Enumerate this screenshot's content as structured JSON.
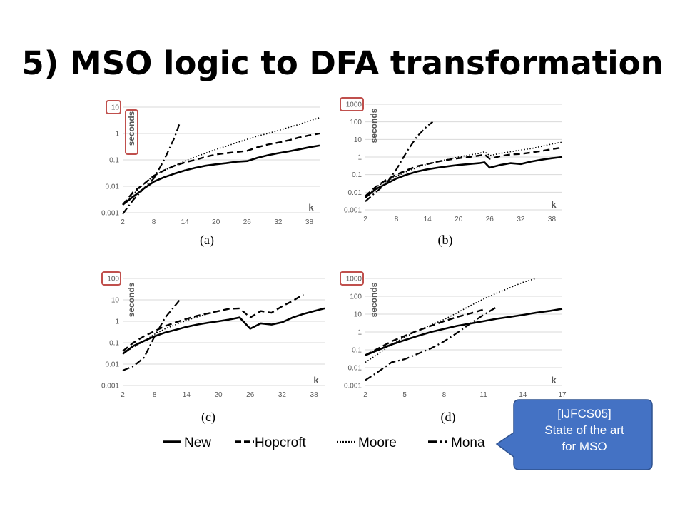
{
  "slide": {
    "title": "5) MSO logic to DFA transformation"
  },
  "callout": {
    "line1": "[IJFCS05]",
    "line2": "State of the art",
    "line3": "for MSO",
    "fill": "#4472c4",
    "border": "#2f528f"
  },
  "legend": [
    {
      "name": "New",
      "style": "solid"
    },
    {
      "name": "Hopcroft",
      "style": "dash"
    },
    {
      "name": "Moore",
      "style": "dot"
    },
    {
      "name": "Mona",
      "style": "dashdot"
    }
  ],
  "highlight_color": "#c0504d",
  "chart_data": [
    {
      "type": "line",
      "label": "(a)",
      "ylabel": "seconds",
      "xlabel": "k",
      "x_ticks": [
        2,
        8,
        14,
        20,
        26,
        32,
        38
      ],
      "xlim": [
        2,
        40
      ],
      "y_ticks": [
        "0.001",
        "0.01",
        "0.1",
        "1",
        "10"
      ],
      "ylim": [
        0.001,
        10
      ],
      "log_y": true,
      "series": [
        {
          "name": "New",
          "x": [
            2,
            4,
            6,
            8,
            10,
            12,
            14,
            16,
            18,
            20,
            22,
            24,
            26,
            28,
            30,
            32,
            34,
            36,
            38,
            40
          ],
          "y": [
            0.002,
            0.004,
            0.008,
            0.015,
            0.022,
            0.03,
            0.04,
            0.05,
            0.06,
            0.068,
            0.075,
            0.085,
            0.09,
            0.12,
            0.15,
            0.18,
            0.21,
            0.25,
            0.3,
            0.35
          ]
        },
        {
          "name": "Hopcroft",
          "x": [
            2,
            4,
            6,
            8,
            10,
            12,
            14,
            16,
            18,
            20,
            22,
            24,
            26,
            28,
            30,
            32,
            34,
            36,
            38,
            40
          ],
          "y": [
            0.002,
            0.006,
            0.012,
            0.025,
            0.04,
            0.06,
            0.08,
            0.1,
            0.13,
            0.16,
            0.18,
            0.2,
            0.22,
            0.3,
            0.38,
            0.45,
            0.55,
            0.7,
            0.85,
            1.0
          ]
        },
        {
          "name": "Moore",
          "x": [
            2,
            4,
            6,
            8,
            10,
            12,
            14,
            16,
            18,
            20,
            22,
            24,
            26,
            28,
            30,
            32,
            34,
            36,
            38,
            40
          ],
          "y": [
            0.002,
            0.005,
            0.012,
            0.025,
            0.04,
            0.06,
            0.09,
            0.13,
            0.18,
            0.25,
            0.33,
            0.45,
            0.6,
            0.8,
            1.0,
            1.3,
            1.7,
            2.2,
            3.0,
            4.0
          ]
        },
        {
          "name": "Mona",
          "x": [
            2,
            4,
            6,
            8,
            10,
            12,
            13
          ],
          "y": [
            0.0009,
            0.003,
            0.008,
            0.02,
            0.1,
            0.7,
            2.5
          ]
        }
      ]
    },
    {
      "type": "line",
      "label": "(b)",
      "ylabel": "seconds",
      "xlabel": "k",
      "x_ticks": [
        2,
        8,
        14,
        20,
        26,
        32,
        38
      ],
      "xlim": [
        2,
        40
      ],
      "y_ticks": [
        "0.001",
        "0.01",
        "0.1",
        "1",
        "10",
        "100",
        "1000"
      ],
      "ylim": [
        0.001,
        1000
      ],
      "log_y": true,
      "series": [
        {
          "name": "New",
          "x": [
            2,
            4,
            6,
            8,
            10,
            12,
            14,
            16,
            18,
            20,
            22,
            24,
            25,
            26,
            28,
            30,
            32,
            34,
            36,
            38,
            40
          ],
          "y": [
            0.005,
            0.015,
            0.03,
            0.06,
            0.1,
            0.15,
            0.2,
            0.25,
            0.3,
            0.35,
            0.4,
            0.45,
            0.5,
            0.25,
            0.35,
            0.45,
            0.4,
            0.55,
            0.7,
            0.85,
            1.0
          ]
        },
        {
          "name": "Hopcroft",
          "x": [
            2,
            4,
            6,
            8,
            10,
            12,
            14,
            16,
            18,
            20,
            22,
            24,
            25,
            26,
            28,
            30,
            32,
            34,
            36,
            38,
            40
          ],
          "y": [
            0.006,
            0.02,
            0.05,
            0.1,
            0.18,
            0.3,
            0.4,
            0.55,
            0.7,
            0.85,
            1.0,
            1.2,
            1.4,
            0.8,
            1.1,
            1.4,
            1.5,
            1.8,
            2.2,
            2.8,
            3.5
          ]
        },
        {
          "name": "Moore",
          "x": [
            2,
            4,
            6,
            8,
            10,
            12,
            14,
            16,
            18,
            20,
            22,
            24,
            25,
            26,
            28,
            30,
            32,
            34,
            36,
            38,
            40
          ],
          "y": [
            0.005,
            0.02,
            0.04,
            0.08,
            0.15,
            0.25,
            0.4,
            0.55,
            0.75,
            1.0,
            1.3,
            1.6,
            2.0,
            1.2,
            1.6,
            2.0,
            2.5,
            3.0,
            4.0,
            5.5,
            7.0
          ]
        },
        {
          "name": "Mona",
          "x": [
            2,
            4,
            6,
            8,
            10,
            12,
            14,
            15
          ],
          "y": [
            0.003,
            0.01,
            0.03,
            0.2,
            2.0,
            15.0,
            60.0,
            100.0
          ]
        }
      ]
    },
    {
      "type": "line",
      "label": "(c)",
      "ylabel": "seconds",
      "xlabel": "k",
      "x_ticks": [
        2,
        8,
        14,
        20,
        26,
        32,
        38
      ],
      "xlim": [
        2,
        40
      ],
      "y_ticks": [
        "0.001",
        "0.01",
        "0.1",
        "1",
        "10",
        "100"
      ],
      "ylim": [
        0.001,
        100
      ],
      "log_y": true,
      "series": [
        {
          "name": "New",
          "x": [
            2,
            4,
            6,
            8,
            10,
            12,
            14,
            16,
            18,
            20,
            22,
            24,
            26,
            28,
            30,
            32,
            34,
            36,
            38,
            40
          ],
          "y": [
            0.03,
            0.07,
            0.12,
            0.2,
            0.3,
            0.4,
            0.55,
            0.7,
            0.85,
            1.0,
            1.2,
            1.5,
            0.45,
            0.8,
            0.7,
            0.9,
            1.5,
            2.2,
            3.0,
            4.0
          ]
        },
        {
          "name": "Hopcroft",
          "x": [
            2,
            4,
            6,
            8,
            10,
            12,
            14,
            16,
            18,
            20,
            22,
            24,
            26,
            28,
            30,
            32,
            34,
            36
          ],
          "y": [
            0.04,
            0.1,
            0.2,
            0.35,
            0.6,
            0.9,
            1.3,
            1.8,
            2.3,
            3.0,
            3.8,
            4.0,
            1.5,
            3.0,
            2.5,
            5.0,
            9.0,
            18.0
          ]
        },
        {
          "name": "Moore",
          "x": [
            2,
            4,
            6,
            8,
            10,
            12,
            14,
            16,
            18,
            20
          ],
          "y": [
            0.03,
            0.06,
            0.12,
            0.25,
            0.45,
            0.7,
            1.1,
            1.6,
            2.2,
            3.0
          ]
        },
        {
          "name": "Mona",
          "x": [
            2,
            4,
            6,
            8,
            10,
            12,
            13
          ],
          "y": [
            0.005,
            0.008,
            0.02,
            0.2,
            1.5,
            6.0,
            12.0
          ]
        }
      ]
    },
    {
      "type": "line",
      "label": "(d)",
      "ylabel": "seconds",
      "xlabel": "k",
      "x_ticks": [
        2,
        5,
        8,
        11,
        14,
        17
      ],
      "xlim": [
        2,
        17
      ],
      "y_ticks": [
        "0.001",
        "0.01",
        "0.1",
        "1",
        "10",
        "100",
        "1000"
      ],
      "ylim": [
        0.001,
        1000
      ],
      "log_y": true,
      "series": [
        {
          "name": "New",
          "x": [
            2,
            3,
            4,
            5,
            6,
            7,
            8,
            9,
            10,
            11,
            12,
            13,
            14,
            15,
            16,
            17
          ],
          "y": [
            0.05,
            0.1,
            0.2,
            0.35,
            0.6,
            1.0,
            1.5,
            2.2,
            3.0,
            4.0,
            5.5,
            7.0,
            9.0,
            12.0,
            15.0,
            20.0
          ]
        },
        {
          "name": "Hopcroft",
          "x": [
            2,
            3,
            4,
            5,
            6,
            7,
            8,
            9,
            10,
            11
          ],
          "y": [
            0.05,
            0.12,
            0.3,
            0.6,
            1.2,
            2.2,
            4.0,
            7.0,
            11.0,
            18.0
          ]
        },
        {
          "name": "Moore",
          "x": [
            2,
            3,
            4,
            5,
            6,
            7,
            8,
            9,
            10,
            11,
            12,
            13,
            14,
            15
          ],
          "y": [
            0.02,
            0.06,
            0.2,
            0.5,
            1.2,
            2.5,
            5.0,
            12.0,
            30.0,
            70.0,
            150.0,
            300.0,
            600.0,
            1000.0
          ]
        },
        {
          "name": "Mona",
          "x": [
            2,
            3,
            4,
            5,
            6,
            7,
            8,
            9,
            10,
            11,
            12
          ],
          "y": [
            0.002,
            0.006,
            0.02,
            0.03,
            0.06,
            0.12,
            0.3,
            0.9,
            3.0,
            9.0,
            25.0
          ]
        }
      ]
    }
  ]
}
